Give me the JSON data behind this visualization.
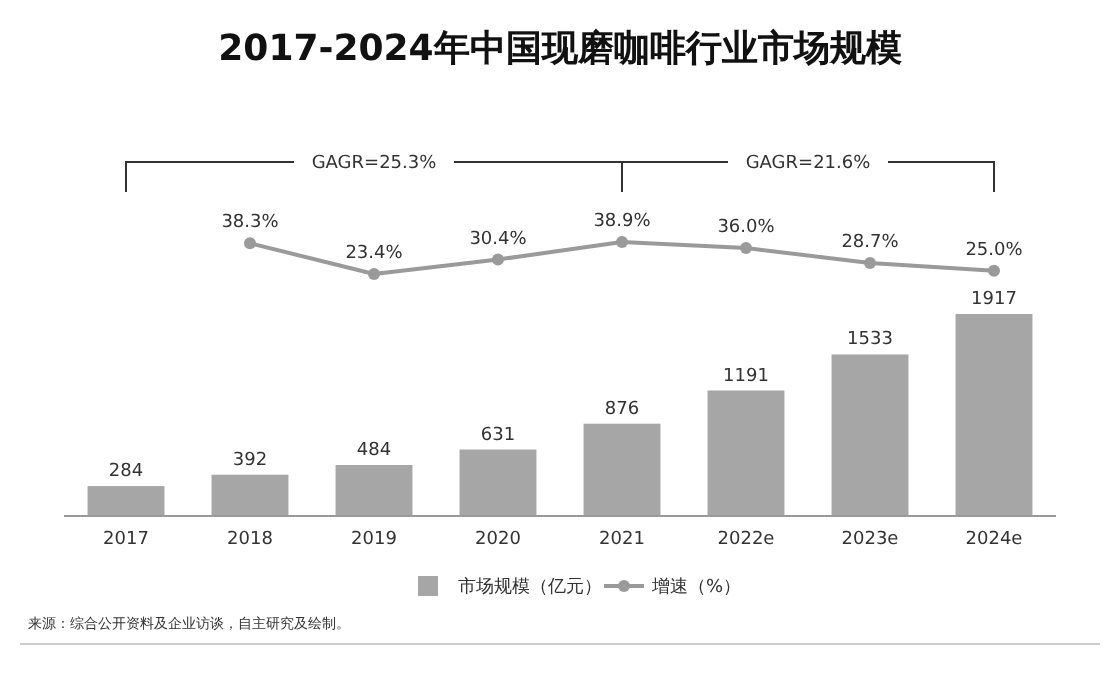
{
  "chart_data": [
    {
      "type": "line",
      "title": "2017-2024年中国现磨咖啡行业市场规模",
      "categories": [
        null,
        null,
        null,
        null,
        null,
        null,
        null,
        null
      ],
      "legend": "bottom",
      "series": [
        {
          "name": "增速（%）",
          "color": "#9a9a9a",
          "marker": "circle",
          "values": [
            null,
            38.3,
            23.4,
            30.4,
            38.9,
            36.0,
            28.7,
            25.0
          ],
          "value_labels": [
            null,
            "38.3%",
            "23.4%",
            "30.4%",
            "38.9%",
            "36.0%",
            "28.7%",
            "25.0%"
          ]
        }
      ],
      "annotations": [
        "GAGR=25.3%",
        "GAGR=21.6%"
      ]
    },
    {
      "type": "bar",
      "categories": [
        "2017",
        "2018",
        "2019",
        "2020",
        "2021",
        "2022e",
        "2023e",
        "2024e"
      ],
      "data_labels": true,
      "legend": "bottom",
      "tick_labels": "x",
      "series": [
        {
          "name": "市场规模（亿元）",
          "color": "#a6a6a6",
          "values": [
            284,
            392,
            484,
            631,
            876,
            1191,
            1533,
            1917
          ]
        }
      ],
      "annotations": [
        "来源：综合公开资料及企业访谈，自主研究及绘制。"
      ]
    }
  ]
}
